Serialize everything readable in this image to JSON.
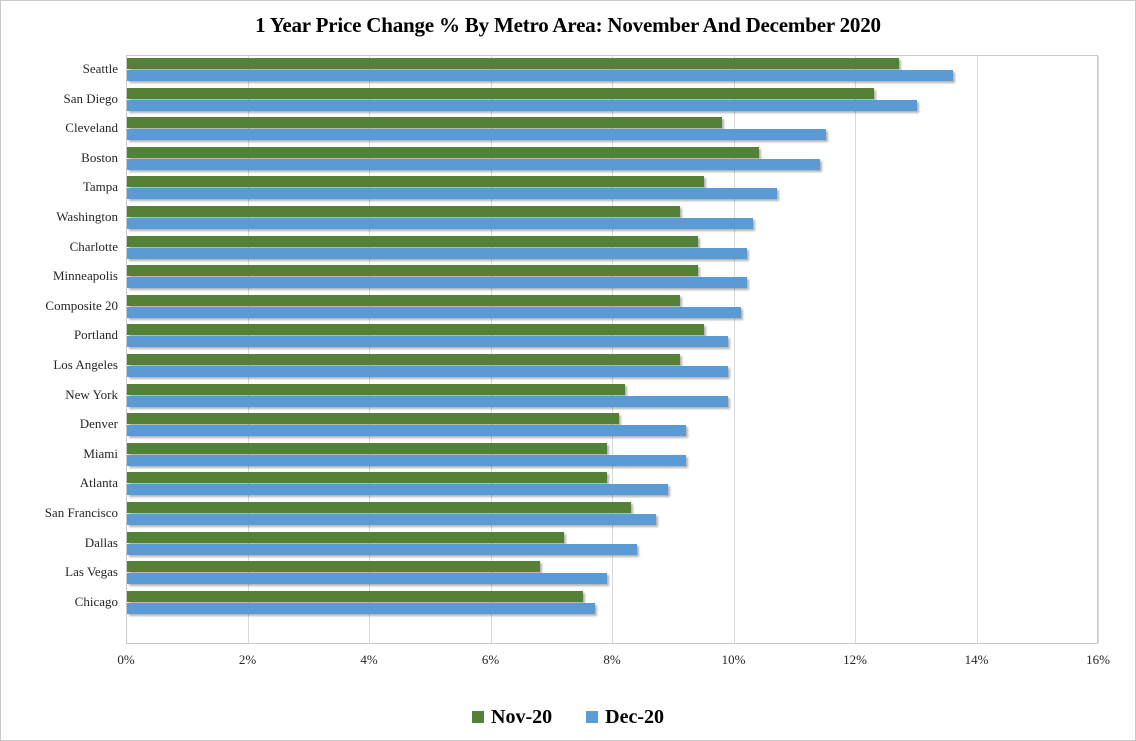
{
  "title": "1 Year Price Change % By Metro Area: November And December 2020",
  "chart_data": {
    "type": "bar",
    "orientation": "horizontal",
    "title": "1 Year Price Change % By Metro Area: November And December 2020",
    "categories": [
      "Seattle",
      "San Diego",
      "Cleveland",
      "Boston",
      "Tampa",
      "Washington",
      "Charlotte",
      "Minneapolis",
      "Composite 20",
      "Portland",
      "Los Angeles",
      "New York",
      "Denver",
      "Miami",
      "Atlanta",
      "San Francisco",
      "Dallas",
      "Las Vegas",
      "Chicago"
    ],
    "series": [
      {
        "name": "Nov-20",
        "color": "#538135",
        "values": [
          12.7,
          12.3,
          9.8,
          10.4,
          9.5,
          9.1,
          9.4,
          9.4,
          9.1,
          9.5,
          9.1,
          8.2,
          8.1,
          7.9,
          7.9,
          8.3,
          7.2,
          6.8,
          7.5
        ]
      },
      {
        "name": "Dec-20",
        "color": "#5B9BD5",
        "values": [
          13.6,
          13.0,
          11.5,
          11.4,
          10.7,
          10.3,
          10.2,
          10.2,
          10.1,
          9.9,
          9.9,
          9.9,
          9.2,
          9.2,
          8.9,
          8.7,
          8.4,
          7.9,
          7.7
        ]
      }
    ],
    "x_axis": {
      "min": 0,
      "max": 16,
      "tick_step": 2,
      "unit": "%",
      "tick_labels": [
        "0%",
        "2%",
        "4%",
        "6%",
        "8%",
        "10%",
        "12%",
        "14%",
        "16%"
      ]
    },
    "grid": "vertical",
    "legend": {
      "position": "bottom",
      "entries": [
        "Nov-20",
        "Dec-20"
      ]
    }
  }
}
